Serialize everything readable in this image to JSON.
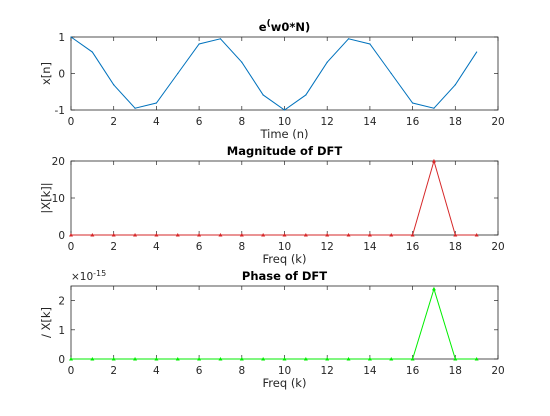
{
  "chart_data": [
    {
      "type": "line",
      "title": "e^(w0*N)",
      "title_base": "e",
      "title_sup": "(",
      "title_rest": "w0*N)",
      "xlabel": "Time (n)",
      "ylabel": "x[n]",
      "xlim": [
        0,
        20
      ],
      "ylim": [
        -1,
        1
      ],
      "xticks": [
        "0",
        "2",
        "4",
        "6",
        "8",
        "10",
        "12",
        "14",
        "16",
        "18",
        "20"
      ],
      "yticks": [
        "-1",
        "0",
        "1"
      ],
      "grid": false,
      "series": [
        {
          "color": "#0072bd",
          "x": [
            0,
            1,
            2,
            3,
            4,
            5,
            6,
            7,
            8,
            9,
            10,
            11,
            12,
            13,
            14,
            15,
            16,
            17,
            18,
            19
          ],
          "y": [
            1.0,
            0.588,
            -0.309,
            -0.951,
            -0.809,
            0.0,
            0.809,
            0.951,
            0.309,
            -0.588,
            -1.0,
            -0.588,
            0.309,
            0.951,
            0.809,
            0.0,
            -0.809,
            -0.951,
            -0.309,
            0.588
          ],
          "markers": false
        }
      ]
    },
    {
      "type": "line",
      "title": "Magnitude of DFT",
      "xlabel": "Freq (k)",
      "ylabel": "|X[k]|",
      "xlim": [
        0,
        20
      ],
      "ylim": [
        0,
        20
      ],
      "xticks": [
        "0",
        "2",
        "4",
        "6",
        "8",
        "10",
        "12",
        "14",
        "16",
        "18",
        "20"
      ],
      "yticks": [
        "0",
        "10",
        "20"
      ],
      "grid": false,
      "series": [
        {
          "color": "#d62728",
          "x": [
            0,
            1,
            2,
            3,
            4,
            5,
            6,
            7,
            8,
            9,
            10,
            11,
            12,
            13,
            14,
            15,
            16,
            17,
            18,
            19
          ],
          "y": [
            0,
            0,
            0,
            0,
            0,
            0,
            0,
            0,
            0,
            0,
            0,
            0,
            0,
            0,
            0,
            0,
            0,
            20,
            0,
            0
          ],
          "markers": true
        }
      ]
    },
    {
      "type": "line",
      "title": "Phase of DFT",
      "xlabel": "Freq (k)",
      "ylabel": "/ X[k]",
      "xlim": [
        0,
        20
      ],
      "ylim": [
        0,
        2.5
      ],
      "exponent_base": "×10",
      "exponent_power": "-15",
      "xticks": [
        "0",
        "2",
        "4",
        "6",
        "8",
        "10",
        "12",
        "14",
        "16",
        "18",
        "20"
      ],
      "yticks": [
        "0",
        "1",
        "2"
      ],
      "grid": false,
      "series": [
        {
          "color": "#00ee00",
          "x": [
            0,
            1,
            2,
            3,
            4,
            5,
            6,
            7,
            8,
            9,
            10,
            11,
            12,
            13,
            14,
            15,
            16,
            17,
            18,
            19
          ],
          "y": [
            0,
            0,
            0,
            0,
            0,
            0,
            0,
            0,
            0,
            0,
            0,
            0,
            0,
            0,
            0,
            0,
            0,
            2.4,
            0,
            0
          ],
          "markers": true
        }
      ]
    }
  ]
}
